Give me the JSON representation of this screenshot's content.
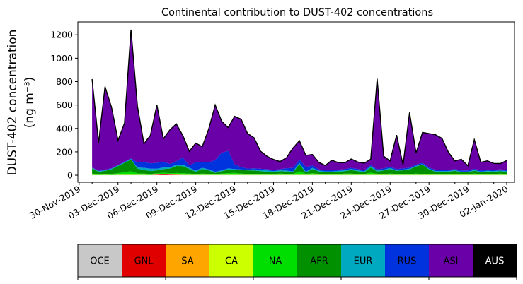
{
  "chart_data": {
    "type": "area",
    "stacked": true,
    "title": "Continental contribution to DUST-402 concentrations",
    "ylabel_line1": "DUST-402 concentration",
    "ylabel_line2": "(ng m⁻³)",
    "ylim": [
      -60,
      1310
    ],
    "yticks": [
      0,
      200,
      400,
      600,
      800,
      1000,
      1200
    ],
    "xlim_day": [
      -0.1,
      33.6
    ],
    "xtick_days": [
      0,
      3,
      6,
      9,
      12,
      15,
      18,
      21,
      24,
      27,
      30,
      33
    ],
    "xtick_labels": [
      "30-Nov-2019",
      "03-Dec-2019",
      "06-Dec-2019",
      "09-Dec-2019",
      "12-Dec-2019",
      "15-Dec-2019",
      "18-Dec-2019",
      "21-Dec-2019",
      "24-Dec-2019",
      "27-Dec-2019",
      "30-Dec-2019",
      "02-Jan-2020"
    ],
    "x_days": [
      1,
      1.5,
      2,
      2.5,
      3,
      3.5,
      4,
      4.5,
      5,
      5.5,
      6,
      6.5,
      7,
      7.5,
      8,
      8.5,
      9,
      9.5,
      10,
      10.5,
      11,
      11.5,
      12,
      12.5,
      13,
      13.5,
      14,
      14.5,
      15,
      15.5,
      16,
      16.5,
      17,
      17.5,
      18,
      18.5,
      19,
      19.5,
      20,
      20.5,
      21,
      21.5,
      22,
      22.5,
      23,
      23.5,
      24,
      24.5,
      25,
      25.5,
      26,
      26.5,
      27,
      27.5,
      28,
      28.5,
      29,
      29.5,
      30,
      30.5,
      31,
      31.5,
      32,
      32.5,
      33
    ],
    "series": [
      {
        "name": "OCE",
        "color": "#c8c8c8",
        "values": [
          2,
          2,
          2,
          2,
          2,
          2,
          2,
          2,
          2,
          2,
          2,
          2,
          2,
          2,
          2,
          2,
          2,
          2,
          2,
          2,
          2,
          2,
          2,
          2,
          2,
          2,
          2,
          2,
          2,
          2,
          2,
          2,
          2,
          2,
          2,
          2,
          2,
          2,
          2,
          2,
          2,
          2,
          2,
          2,
          2,
          2,
          2,
          2,
          2,
          2,
          2,
          2,
          2,
          2,
          2,
          2,
          2,
          2,
          2,
          2,
          2,
          2,
          2,
          2,
          2
        ]
      },
      {
        "name": "GNL",
        "color": "#e00000",
        "values": [
          0,
          0,
          0,
          0,
          0,
          0,
          0,
          0,
          0,
          0,
          3,
          6,
          4,
          2,
          0,
          0,
          0,
          0,
          0,
          0,
          0,
          0,
          0,
          0,
          0,
          0,
          0,
          0,
          0,
          0,
          0,
          0,
          0,
          0,
          0,
          0,
          0,
          0,
          0,
          0,
          0,
          0,
          0,
          0,
          0,
          0,
          0,
          0,
          0,
          0,
          0,
          0,
          0,
          0,
          0,
          0,
          0,
          0,
          0,
          0,
          0,
          0,
          0,
          0,
          0
        ]
      },
      {
        "name": "SA",
        "color": "#ffa500",
        "values": [
          0,
          0,
          0,
          0,
          0,
          0,
          0,
          0,
          0,
          0,
          1,
          2,
          1,
          1,
          0,
          0,
          0,
          0,
          0,
          0,
          0,
          0,
          0,
          0,
          0,
          0,
          0,
          0,
          0,
          0,
          0,
          0,
          0,
          0,
          0,
          0,
          0,
          0,
          0,
          0,
          0,
          0,
          0,
          0,
          0,
          0,
          0,
          0,
          0,
          0,
          0,
          0,
          0,
          0,
          0,
          0,
          0,
          0,
          0,
          0,
          0,
          0,
          0,
          0,
          0
        ]
      },
      {
        "name": "CA",
        "color": "#ccff00",
        "values": [
          2,
          1,
          2,
          1,
          2,
          2,
          2,
          2,
          2,
          1,
          2,
          2,
          2,
          2,
          2,
          2,
          2,
          2,
          2,
          2,
          2,
          2,
          2,
          2,
          2,
          2,
          2,
          2,
          2,
          2,
          2,
          2,
          2,
          2,
          2,
          2,
          2,
          2,
          2,
          2,
          2,
          2,
          2,
          2,
          2,
          2,
          2,
          2,
          2,
          2,
          2,
          2,
          2,
          2,
          2,
          2,
          2,
          2,
          2,
          2,
          2,
          2,
          2,
          2,
          2
        ]
      },
      {
        "name": "NA",
        "color": "#00dd00",
        "values": [
          10,
          6,
          8,
          8,
          14,
          22,
          30,
          12,
          10,
          8,
          8,
          10,
          8,
          12,
          14,
          10,
          6,
          10,
          8,
          6,
          10,
          14,
          16,
          10,
          8,
          6,
          6,
          6,
          6,
          10,
          8,
          6,
          30,
          8,
          14,
          8,
          6,
          6,
          6,
          10,
          10,
          6,
          6,
          18,
          8,
          6,
          10,
          8,
          8,
          6,
          10,
          6,
          6,
          6,
          6,
          6,
          8,
          6,
          6,
          10,
          6,
          8,
          6,
          10,
          6
        ]
      },
      {
        "name": "AFR",
        "color": "#009000",
        "values": [
          45,
          20,
          25,
          40,
          60,
          80,
          100,
          40,
          30,
          25,
          25,
          30,
          40,
          60,
          60,
          40,
          20,
          40,
          30,
          10,
          20,
          30,
          25,
          30,
          30,
          30,
          25,
          20,
          15,
          20,
          20,
          15,
          60,
          10,
          35,
          20,
          15,
          15,
          20,
          20,
          30,
          25,
          15,
          45,
          20,
          30,
          40,
          25,
          30,
          40,
          60,
          80,
          40,
          20,
          20,
          20,
          25,
          15,
          15,
          25,
          15,
          20,
          20,
          20,
          20
        ]
      },
      {
        "name": "EUR",
        "color": "#00a8c0",
        "values": [
          5,
          6,
          5,
          5,
          5,
          5,
          5,
          10,
          20,
          20,
          15,
          15,
          10,
          10,
          12,
          10,
          10,
          10,
          8,
          10,
          8,
          10,
          8,
          5,
          5,
          10,
          10,
          12,
          10,
          8,
          8,
          8,
          10,
          8,
          10,
          8,
          8,
          8,
          8,
          8,
          10,
          8,
          8,
          10,
          8,
          8,
          8,
          6,
          6,
          6,
          6,
          6,
          6,
          6,
          6,
          6,
          6,
          6,
          6,
          6,
          6,
          6,
          6,
          6,
          6
        ]
      },
      {
        "name": "RUS",
        "color": "#0033dd",
        "values": [
          3,
          3,
          5,
          5,
          5,
          5,
          5,
          45,
          50,
          45,
          50,
          50,
          30,
          30,
          60,
          20,
          70,
          50,
          60,
          100,
          150,
          150,
          40,
          20,
          10,
          10,
          10,
          10,
          10,
          10,
          20,
          30,
          30,
          40,
          20,
          10,
          10,
          10,
          10,
          10,
          10,
          10,
          10,
          10,
          10,
          10,
          10,
          10,
          10,
          10,
          10,
          10,
          10,
          10,
          10,
          10,
          10,
          10,
          10,
          10,
          10,
          10,
          10,
          10,
          10
        ]
      },
      {
        "name": "ASI",
        "color": "#6a00a8",
        "values": [
          755,
          240,
          710,
          520,
          210,
          330,
          1100,
          480,
          155,
          240,
          495,
          195,
          290,
          320,
          190,
          120,
          165,
          130,
          285,
          470,
          270,
          200,
          410,
          410,
          300,
          260,
          150,
          110,
          90,
          65,
          90,
          170,
          160,
          100,
          95,
          60,
          40,
          85,
          60,
          55,
          75,
          60,
          60,
          50,
          775,
          105,
          50,
          290,
          30,
          470,
          100,
          260,
          290,
          300,
          270,
          150,
          70,
          95,
          40,
          250,
          70,
          75,
          55,
          50,
          80
        ]
      },
      {
        "name": "AUS",
        "color": "#000000",
        "values": [
          0,
          0,
          0,
          0,
          0,
          0,
          0,
          0,
          0,
          0,
          0,
          0,
          0,
          0,
          0,
          0,
          0,
          0,
          0,
          0,
          0,
          0,
          0,
          0,
          0,
          0,
          0,
          0,
          0,
          0,
          0,
          0,
          0,
          0,
          0,
          0,
          0,
          0,
          0,
          0,
          0,
          0,
          0,
          0,
          0,
          0,
          0,
          0,
          0,
          0,
          0,
          0,
          0,
          0,
          0,
          0,
          0,
          0,
          0,
          0,
          0,
          0,
          0,
          0,
          0
        ]
      }
    ],
    "legend": [
      {
        "label": "OCE",
        "color": "#c8c8c8",
        "text_color": "#000000"
      },
      {
        "label": "GNL",
        "color": "#e00000",
        "text_color": "#000000"
      },
      {
        "label": "SA",
        "color": "#ffa500",
        "text_color": "#000000"
      },
      {
        "label": "CA",
        "color": "#ccff00",
        "text_color": "#000000"
      },
      {
        "label": "NA",
        "color": "#00dd00",
        "text_color": "#000000"
      },
      {
        "label": "AFR",
        "color": "#009000",
        "text_color": "#000000"
      },
      {
        "label": "EUR",
        "color": "#00a8c0",
        "text_color": "#000000"
      },
      {
        "label": "RUS",
        "color": "#0033dd",
        "text_color": "#000000"
      },
      {
        "label": "ASI",
        "color": "#6a00a8",
        "text_color": "#000000"
      },
      {
        "label": "AUS",
        "color": "#000000",
        "text_color": "#ffffff"
      }
    ],
    "legend_position": "bottom",
    "grid": false
  }
}
